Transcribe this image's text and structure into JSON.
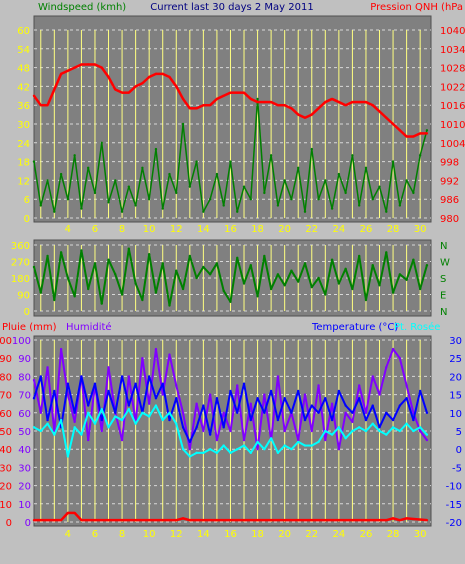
{
  "colors": {
    "window_bg": "#c0c0c0",
    "plot_bg": "#808080",
    "grid": "#d8d8d8",
    "day_marker": "#ffff80",
    "windspeed": "#008000",
    "pressure": "#ff0000",
    "wind_direction": "#008000",
    "rain": "#ff0000",
    "humidity": "#8000ff",
    "temperature": "#0000ff",
    "dewpoint": "#00ffff",
    "bottom_axis_ticks": "#ffff00",
    "left_axis_ticks": "#ffff00"
  },
  "chart_data": [
    {
      "type": "line",
      "panel": "top",
      "title": "Current last 30 days 2 May 2011",
      "x_tick_labels": [
        "4",
        "6",
        "8",
        "10",
        "12",
        "14",
        "16",
        "18",
        "20",
        "22",
        "24",
        "26",
        "28",
        "30"
      ],
      "x_ticks": [
        4,
        6,
        8,
        10,
        12,
        14,
        16,
        18,
        20,
        22,
        24,
        26,
        28,
        30
      ],
      "xlim": [
        1.5,
        30.8
      ],
      "left_axis": {
        "label": "Windspeed (kmh)",
        "ylim": [
          0,
          60
        ],
        "ticks": [
          "0",
          "6",
          "12",
          "18",
          "24",
          "30",
          "36",
          "42",
          "48",
          "54",
          "60"
        ]
      },
      "right_axis": {
        "label": "Pression QNH (hPa",
        "ylim": [
          980,
          1040
        ],
        "ticks": [
          "980",
          "986",
          "992",
          "998",
          "1004",
          "1010",
          "1016",
          "1022",
          "1028",
          "1034",
          "1040"
        ]
      },
      "series": [
        {
          "key": "wind",
          "axis": "left",
          "x": [
            1.5,
            2.0,
            2.5,
            3.0,
            3.5,
            4.0,
            4.5,
            5.0,
            5.5,
            6.0,
            6.5,
            7.0,
            7.5,
            8.0,
            8.5,
            9.0,
            9.5,
            10.0,
            10.5,
            11.0,
            11.5,
            12.0,
            12.5,
            13.0,
            13.5,
            14.0,
            14.5,
            15.0,
            15.5,
            16.0,
            16.5,
            17.0,
            17.5,
            18.0,
            18.5,
            19.0,
            19.5,
            20.0,
            20.5,
            21.0,
            21.5,
            22.0,
            22.5,
            23.0,
            23.5,
            24.0,
            24.5,
            25.0,
            25.5,
            26.0,
            26.5,
            27.0,
            27.5,
            28.0,
            28.5,
            29.0,
            29.5,
            30.0,
            30.5
          ],
          "values": [
            18,
            4,
            12,
            2,
            14,
            6,
            20,
            3,
            16,
            8,
            24,
            5,
            12,
            2,
            10,
            4,
            16,
            6,
            22,
            3,
            14,
            8,
            30,
            10,
            18,
            2,
            6,
            14,
            4,
            18,
            2,
            10,
            6,
            38,
            8,
            20,
            4,
            12,
            6,
            16,
            2,
            22,
            6,
            12,
            3,
            14,
            8,
            20,
            4,
            16,
            6,
            10,
            2,
            18,
            4,
            12,
            8,
            20,
            28
          ]
        },
        {
          "key": "pressure",
          "axis": "right",
          "x": [
            1.5,
            2.0,
            2.5,
            3.0,
            3.5,
            4.0,
            4.5,
            5.0,
            5.5,
            6.0,
            6.5,
            7.0,
            7.5,
            8.0,
            8.5,
            9.0,
            9.5,
            10.0,
            10.5,
            11.0,
            11.5,
            12.0,
            12.5,
            13.0,
            13.5,
            14.0,
            14.5,
            15.0,
            15.5,
            16.0,
            16.5,
            17.0,
            17.5,
            18.0,
            18.5,
            19.0,
            19.5,
            20.0,
            20.5,
            21.0,
            21.5,
            22.0,
            22.5,
            23.0,
            23.5,
            24.0,
            24.5,
            25.0,
            25.5,
            26.0,
            26.5,
            27.0,
            27.5,
            28.0,
            28.5,
            29.0,
            29.5,
            30.0,
            30.5
          ],
          "values": [
            1019,
            1016,
            1016,
            1021,
            1026,
            1027,
            1028,
            1029,
            1029,
            1029,
            1028,
            1025,
            1021,
            1020,
            1020,
            1022,
            1023,
            1025,
            1026,
            1026,
            1025,
            1022,
            1018,
            1015,
            1015,
            1016,
            1016,
            1018,
            1019,
            1020,
            1020,
            1020,
            1018,
            1017,
            1017,
            1017,
            1016,
            1016,
            1015,
            1013,
            1012,
            1013,
            1015,
            1017,
            1018,
            1017,
            1016,
            1017,
            1017,
            1017,
            1016,
            1014,
            1012,
            1010,
            1008,
            1006,
            1006,
            1007,
            1007
          ]
        }
      ]
    },
    {
      "type": "line",
      "panel": "middle",
      "left_axis": {
        "ylim": [
          0,
          360
        ],
        "ticks": [
          "0",
          "90",
          "180",
          "270",
          "360"
        ]
      },
      "right_axis": {
        "ticks": [
          "N",
          "E",
          "S",
          "W",
          "N"
        ]
      },
      "series": [
        {
          "key": "direction",
          "x": [
            1.5,
            2.0,
            2.5,
            3.0,
            3.5,
            4.0,
            4.5,
            5.0,
            5.5,
            6.0,
            6.5,
            7.0,
            7.5,
            8.0,
            8.5,
            9.0,
            9.5,
            10.0,
            10.5,
            11.0,
            11.5,
            12.0,
            12.5,
            13.0,
            13.5,
            14.0,
            14.5,
            15.0,
            15.5,
            16.0,
            16.5,
            17.0,
            17.5,
            18.0,
            18.5,
            19.0,
            19.5,
            20.0,
            20.5,
            21.0,
            21.5,
            22.0,
            22.5,
            23.0,
            23.5,
            24.0,
            24.5,
            25.0,
            25.5,
            26.0,
            26.5,
            27.0,
            27.5,
            28.0,
            28.5,
            29.0,
            29.5,
            30.0,
            30.5
          ],
          "values": [
            240,
            100,
            300,
            60,
            320,
            180,
            80,
            330,
            120,
            260,
            40,
            280,
            200,
            90,
            340,
            150,
            60,
            310,
            100,
            260,
            30,
            220,
            120,
            300,
            180,
            240,
            200,
            260,
            110,
            50,
            290,
            150,
            250,
            80,
            300,
            120,
            200,
            140,
            220,
            160,
            260,
            130,
            180,
            90,
            280,
            150,
            230,
            120,
            300,
            60,
            250,
            140,
            320,
            100,
            200,
            170,
            280,
            120,
            250
          ]
        }
      ]
    },
    {
      "type": "line",
      "panel": "bottom",
      "legend": [
        "Pluie (mm)",
        "Humidité",
        "Temperature (°C)",
        "Pt. Rosée"
      ],
      "left_axis_rain": {
        "ylim": [
          0,
          100
        ],
        "ticks": [
          "0",
          "10",
          "20",
          "30",
          "40",
          "50",
          "60",
          "70",
          "80",
          "90",
          "100"
        ]
      },
      "left_axis_humidity": {
        "ylim": [
          0,
          100
        ],
        "ticks": [
          "0",
          "10",
          "20",
          "30",
          "40",
          "50",
          "60",
          "70",
          "80",
          "90",
          "100"
        ]
      },
      "right_axis": {
        "ylim": [
          -20,
          30
        ],
        "ticks": [
          "-20",
          "-15",
          "-10",
          "-5",
          "0",
          "5",
          "10",
          "15",
          "20",
          "25",
          "30"
        ]
      },
      "series": [
        {
          "key": "rain",
          "axis": "left",
          "x": [
            1.5,
            3.5,
            4.0,
            4.5,
            5.0,
            12.0,
            12.5,
            13.0,
            27.5,
            28.0,
            28.5,
            29.0,
            30.5
          ],
          "values": [
            1,
            1,
            5,
            5,
            1,
            1,
            2,
            1,
            1,
            2,
            1,
            2,
            1
          ]
        },
        {
          "key": "humidity",
          "axis": "left",
          "x": [
            1.5,
            2.0,
            2.5,
            3.0,
            3.5,
            4.0,
            4.5,
            5.0,
            5.5,
            6.0,
            6.5,
            7.0,
            7.5,
            8.0,
            8.5,
            9.0,
            9.5,
            10.0,
            10.5,
            11.0,
            11.5,
            12.0,
            12.5,
            13.0,
            13.5,
            14.0,
            14.5,
            15.0,
            15.5,
            16.0,
            16.5,
            17.0,
            17.5,
            18.0,
            18.5,
            19.0,
            19.5,
            20.0,
            20.5,
            21.0,
            21.5,
            22.0,
            22.5,
            23.0,
            23.5,
            24.0,
            24.5,
            25.0,
            25.5,
            26.0,
            26.5,
            27.0,
            27.5,
            28.0,
            28.5,
            29.0,
            29.5,
            30.0,
            30.5
          ],
          "values": [
            78,
            60,
            85,
            50,
            95,
            70,
            55,
            80,
            45,
            75,
            50,
            85,
            60,
            45,
            80,
            55,
            90,
            65,
            95,
            70,
            92,
            75,
            60,
            40,
            65,
            50,
            70,
            45,
            60,
            50,
            75,
            45,
            65,
            40,
            70,
            45,
            80,
            50,
            60,
            45,
            70,
            50,
            75,
            45,
            65,
            40,
            60,
            55,
            75,
            60,
            80,
            70,
            85,
            95,
            90,
            75,
            60,
            50,
            45
          ]
        },
        {
          "key": "temperature",
          "axis": "right",
          "x": [
            1.5,
            2.0,
            2.5,
            3.0,
            3.5,
            4.0,
            4.5,
            5.0,
            5.5,
            6.0,
            6.5,
            7.0,
            7.5,
            8.0,
            8.5,
            9.0,
            9.5,
            10.0,
            10.5,
            11.0,
            11.5,
            12.0,
            12.5,
            13.0,
            13.5,
            14.0,
            14.5,
            15.0,
            15.5,
            16.0,
            16.5,
            17.0,
            17.5,
            18.0,
            18.5,
            19.0,
            19.5,
            20.0,
            20.5,
            21.0,
            21.5,
            22.0,
            22.5,
            23.0,
            23.5,
            24.0,
            24.5,
            25.0,
            25.5,
            26.0,
            26.5,
            27.0,
            27.5,
            28.0,
            28.5,
            29.0,
            29.5,
            30.0,
            30.5
          ],
          "values": [
            14,
            20,
            8,
            16,
            6,
            18,
            10,
            20,
            12,
            18,
            8,
            16,
            10,
            20,
            12,
            18,
            10,
            20,
            14,
            18,
            8,
            14,
            6,
            2,
            6,
            12,
            4,
            14,
            6,
            16,
            10,
            18,
            8,
            14,
            10,
            16,
            8,
            14,
            10,
            16,
            8,
            12,
            10,
            14,
            8,
            16,
            12,
            10,
            14,
            8,
            12,
            6,
            10,
            8,
            12,
            14,
            8,
            16,
            10
          ]
        },
        {
          "key": "dewpoint",
          "axis": "right",
          "x": [
            1.5,
            2.0,
            2.5,
            3.0,
            3.5,
            4.0,
            4.5,
            5.0,
            5.5,
            6.0,
            6.5,
            7.0,
            7.5,
            8.0,
            8.5,
            9.0,
            9.5,
            10.0,
            10.5,
            11.0,
            11.5,
            12.0,
            12.5,
            13.0,
            13.5,
            14.0,
            14.5,
            15.0,
            15.5,
            16.0,
            16.5,
            17.0,
            17.5,
            18.0,
            18.5,
            19.0,
            19.5,
            20.0,
            20.5,
            21.0,
            21.5,
            22.0,
            22.5,
            23.0,
            23.5,
            24.0,
            24.5,
            25.0,
            25.5,
            26.0,
            26.5,
            27.0,
            27.5,
            28.0,
            28.5,
            29.0,
            29.5,
            30.0,
            30.5
          ],
          "values": [
            6,
            5,
            7,
            4,
            8,
            -2,
            6,
            4,
            10,
            7,
            11,
            6,
            9,
            8,
            11,
            7,
            10,
            9,
            12,
            8,
            10,
            7,
            0,
            -2,
            -1,
            -1,
            0,
            -1,
            1,
            -1,
            0,
            1,
            -1,
            2,
            0,
            3,
            -1,
            1,
            0,
            2,
            1,
            1,
            2,
            5,
            4,
            6,
            3,
            5,
            6,
            5,
            7,
            5,
            4,
            6,
            5,
            7,
            5,
            6,
            4
          ]
        }
      ]
    }
  ]
}
